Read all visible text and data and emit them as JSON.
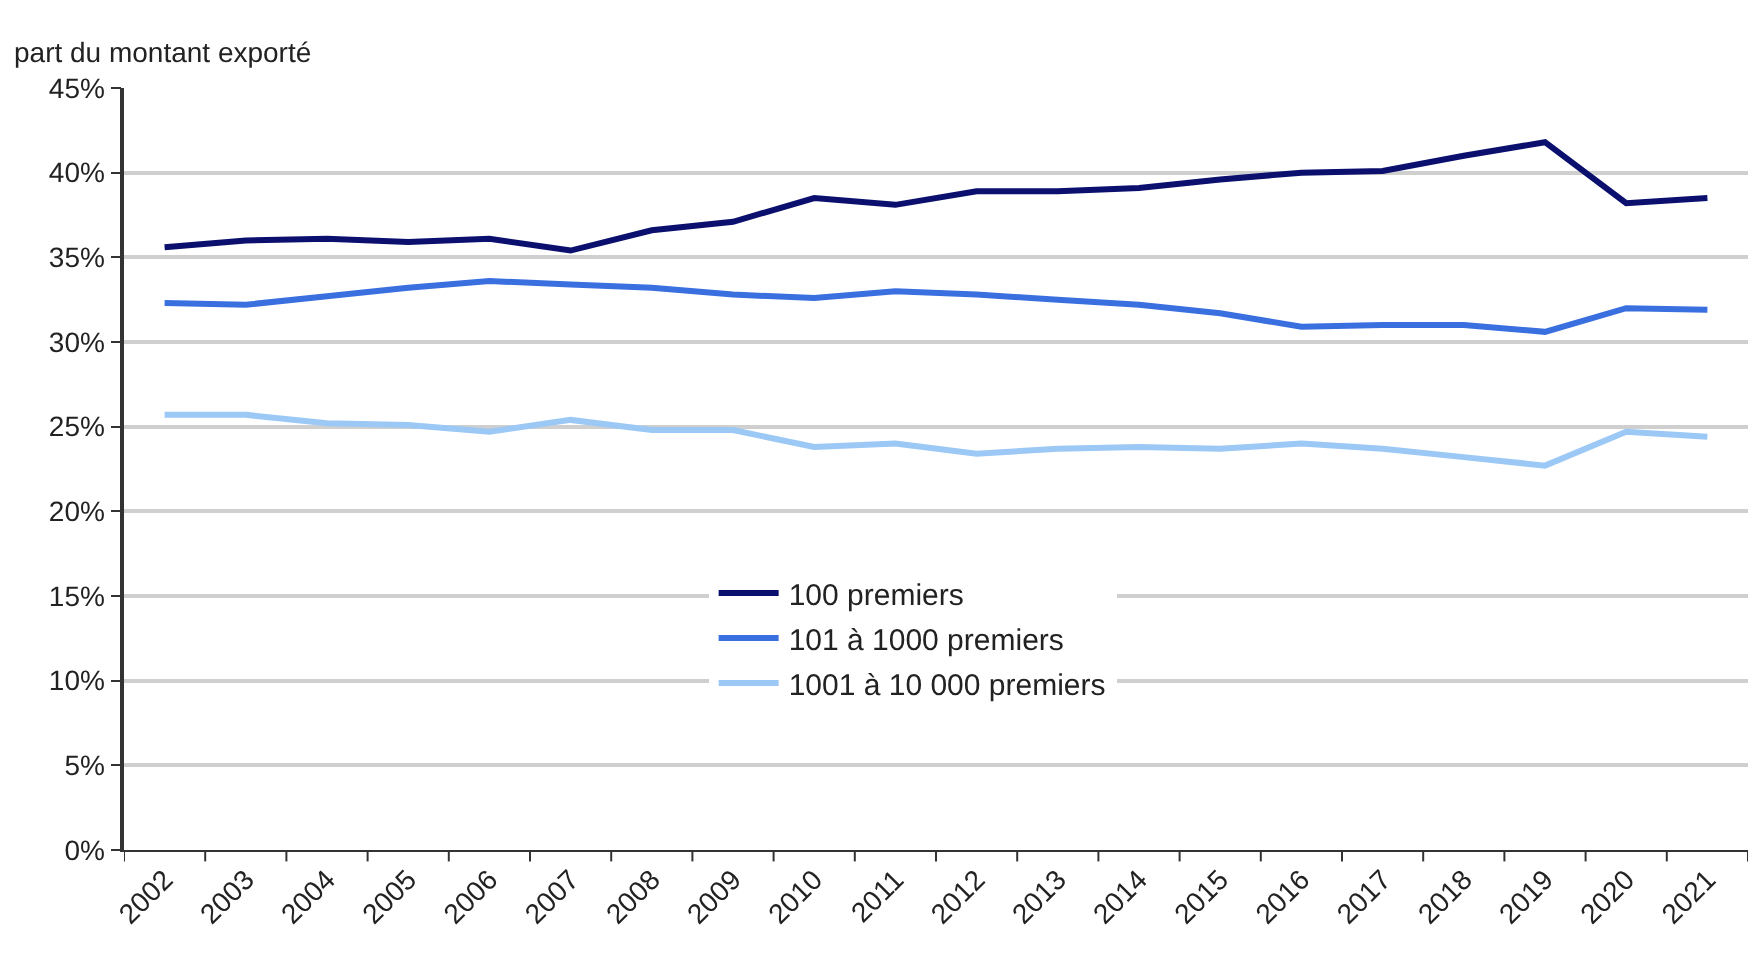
{
  "chart_data": {
    "type": "line",
    "ylabel": "part du montant exporté",
    "categories": [
      "2002",
      "2003",
      "2004",
      "2005",
      "2006",
      "2007",
      "2008",
      "2009",
      "2010",
      "2011",
      "2012",
      "2013",
      "2014",
      "2015",
      "2016",
      "2017",
      "2018",
      "2019",
      "2020",
      "2021"
    ],
    "series": [
      {
        "name": "100 premiers",
        "color": "#0b0f6e",
        "values": [
          35.6,
          36.0,
          36.1,
          35.9,
          36.1,
          35.4,
          36.6,
          37.1,
          38.5,
          38.1,
          38.9,
          38.9,
          39.1,
          39.6,
          40.0,
          40.1,
          41.0,
          41.8,
          38.2,
          38.5
        ]
      },
      {
        "name": "101 à 1000 premiers",
        "color": "#3a6fe0",
        "values": [
          32.3,
          32.2,
          32.7,
          33.2,
          33.6,
          33.4,
          33.2,
          32.8,
          32.6,
          33.0,
          32.8,
          32.5,
          32.2,
          31.7,
          30.9,
          31.0,
          31.0,
          30.6,
          32.0,
          31.9
        ]
      },
      {
        "name": "1001 à 10 000 premiers",
        "color": "#9cc8f5",
        "values": [
          25.7,
          25.7,
          25.2,
          25.1,
          24.7,
          25.4,
          24.8,
          24.8,
          23.8,
          24.0,
          23.4,
          23.7,
          23.8,
          23.7,
          24.0,
          23.7,
          23.2,
          22.7,
          24.7,
          24.4
        ]
      }
    ],
    "ylim": [
      0,
      45
    ],
    "yticks": [
      {
        "value": 0,
        "label": "0%"
      },
      {
        "value": 5,
        "label": "5%"
      },
      {
        "value": 10,
        "label": "10%"
      },
      {
        "value": 15,
        "label": "15%"
      },
      {
        "value": 20,
        "label": "20%"
      },
      {
        "value": 25,
        "label": "25%"
      },
      {
        "value": 30,
        "label": "30%"
      },
      {
        "value": 35,
        "label": "35%"
      },
      {
        "value": 40,
        "label": "40%"
      },
      {
        "value": 45,
        "label": "45%"
      }
    ],
    "grid": "y",
    "legend": "center",
    "marker": "none",
    "line_style": "solid"
  }
}
